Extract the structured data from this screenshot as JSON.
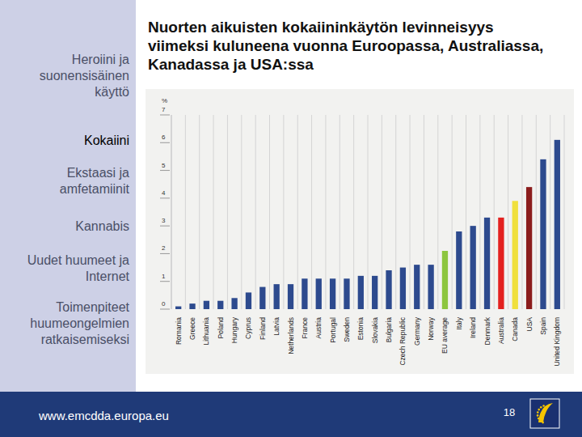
{
  "sidebar": {
    "items": [
      "Heroiini ja suonensisäinen käyttö",
      "Kokaiini",
      "Ekstaasi ja amfetamiinit",
      "Kannabis",
      "Uudet huumeet ja Internet",
      "Toimenpiteet huumeongelmien ratkaisemiseksi"
    ]
  },
  "chart_data": {
    "type": "bar",
    "title": "Nuorten aikuisten kokaiininkäytön levinneisyys viimeksi kuluneena vuonna Euroopassa, Australiassa, Kanadassa ja USA:ssa",
    "y_label": "%",
    "categories": [
      "Romania",
      "Greece",
      "Lithuania",
      "Poland",
      "Hungary",
      "Cyprus",
      "Finland",
      "Latvia",
      "Netherlands",
      "France",
      "Austria",
      "Portugal",
      "Sweden",
      "Estonia",
      "Slovakia",
      "Bulgaria",
      "Czech Republic",
      "Germany",
      "Norway",
      "EU average",
      "Italy",
      "Ireland",
      "Denmark",
      "Australia",
      "Canada",
      "USA",
      "Spain",
      "United Kingdom"
    ],
    "values": [
      0.1,
      0.2,
      0.3,
      0.3,
      0.4,
      0.6,
      0.8,
      0.9,
      0.9,
      1.1,
      1.1,
      1.1,
      1.1,
      1.2,
      1.2,
      1.4,
      1.5,
      1.6,
      1.6,
      2.1,
      2.8,
      3.0,
      3.3,
      3.3,
      3.9,
      4.4,
      5.4,
      6.1
    ],
    "colors": [
      "#2d4a8e",
      "#2d4a8e",
      "#2d4a8e",
      "#2d4a8e",
      "#2d4a8e",
      "#2d4a8e",
      "#2d4a8e",
      "#2d4a8e",
      "#2d4a8e",
      "#2d4a8e",
      "#2d4a8e",
      "#2d4a8e",
      "#2d4a8e",
      "#2d4a8e",
      "#2d4a8e",
      "#2d4a8e",
      "#2d4a8e",
      "#2d4a8e",
      "#2d4a8e",
      "#8dc63f",
      "#2d4a8e",
      "#2d4a8e",
      "#2d4a8e",
      "#e3211f",
      "#f0e03c",
      "#8b1c1c",
      "#2d4a8e",
      "#2d4a8e"
    ],
    "ylim": [
      0,
      7
    ],
    "yticks": [
      0,
      1,
      2,
      3,
      4,
      5,
      6,
      7
    ],
    "grid": true
  },
  "footer": {
    "url": "www.emcdda.europa.eu",
    "page": 18
  }
}
